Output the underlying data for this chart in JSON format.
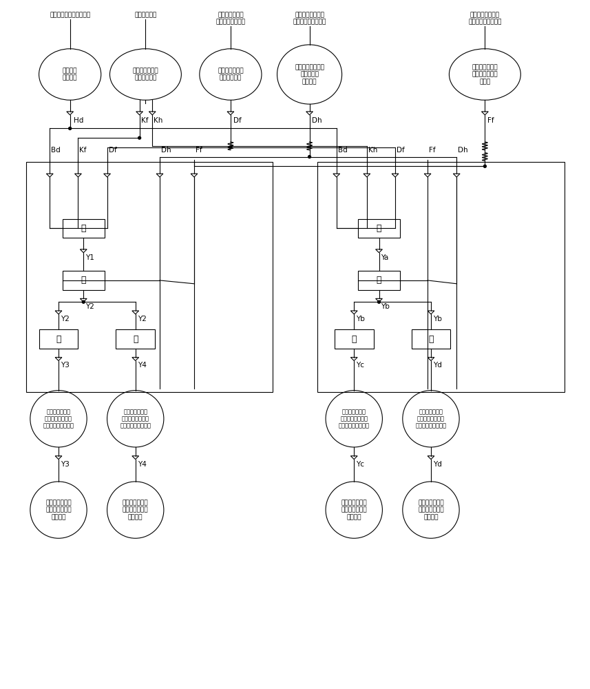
{
  "bg_color": "#ffffff",
  "line_color": "#000000",
  "figsize": [
    8.57,
    10.0
  ],
  "top_header_left": [
    "远方控制室阀隔核对开关",
    "本装置的电源",
    "高压断路器的操\n作机构的接线端子",
    "负荷侧隔离开关的\n操作机构的接线端子"
  ],
  "top_header_right": [
    "电源侧隔离开关的\n操作机构的接线端子"
  ],
  "ellipse_texts": [
    "远方间隔\n核对回路",
    "隔离开关分闸或\n合闸选择开关",
    "断路器分闸状态\n信号获取回路",
    "电源侧隔离开关合\n闸状态信号\n获取回路",
    "负荷侧隔离开关\n分闸状态信号获\n取回路"
  ],
  "gate_char": "与",
  "left_input_labels": [
    "Bd",
    "Kf",
    "Df",
    "Dh",
    "Ff"
  ],
  "right_input_labels": [
    "Bd",
    "Kh",
    "Df",
    "Ff",
    "Dh"
  ],
  "left_outputs": [
    "Y1",
    "Y2",
    "Y2",
    "Y3",
    "Y4"
  ],
  "right_outputs": [
    "Ya",
    "Yb",
    "Yb",
    "Yc",
    "Yd"
  ],
  "left_circles_top": [
    "负荷侧隔离开关\n操作电机的分闸投\n电控制信号发出回路",
    "电源侧隔离开关\n操作电机的分闸投\n电控制信号发出回路"
  ],
  "left_circles_bot": [
    "负荷侧隔离开关\n操作电机的分闸\n电源回路",
    "电源侧隔离开关\n操作电机的分闸\n电源回路"
  ],
  "right_circles_top": [
    "电源侧隔离开关\n操作电机的合闸投\n电控制信号发出回路",
    "负荷侧隔离开关\n操作电机的合闸投\n电控制信号发出回路"
  ],
  "right_circles_bot": [
    "电源侧隔离开关\n操作电机的合闸\n电源回路",
    "负荷侧隔离开关\n操作电机的合闸\n电源回路"
  ],
  "arrow_labels_left_bot": [
    "Y3",
    "Y4"
  ],
  "arrow_labels_right_bot": [
    "Yc",
    "Yd"
  ]
}
